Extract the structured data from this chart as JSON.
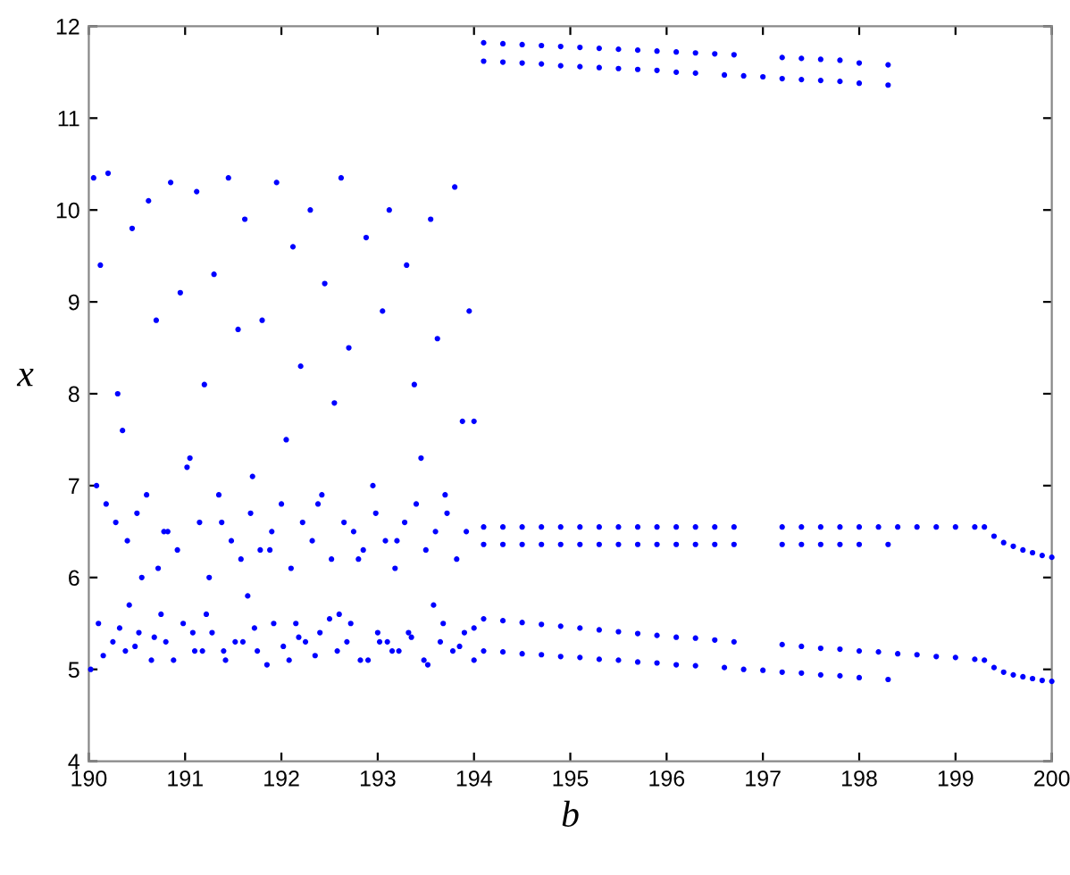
{
  "chart_data": {
    "type": "scatter",
    "xlabel": "b",
    "ylabel": "x",
    "xlim": [
      190,
      200
    ],
    "ylim": [
      4,
      12
    ],
    "xticks": [
      190,
      191,
      192,
      193,
      194,
      195,
      196,
      197,
      198,
      199,
      200
    ],
    "yticks": [
      4,
      5,
      6,
      7,
      8,
      9,
      10,
      11,
      12
    ],
    "grid": false,
    "marker": "circle",
    "series": [
      {
        "color": "#0000ff",
        "x": [
          190.05,
          190.12,
          190.2,
          190.3,
          190.35,
          190.45,
          190.55,
          190.62,
          190.7,
          190.78,
          190.85,
          190.95,
          191.05,
          191.12,
          191.2,
          191.3,
          191.38,
          191.45,
          191.55,
          191.62,
          191.7,
          191.8,
          191.88,
          191.95,
          192.05,
          192.12,
          192.2,
          192.3,
          192.38,
          192.45,
          192.55,
          192.62,
          192.7,
          192.8,
          192.88,
          192.95,
          193.05,
          193.12,
          193.2,
          193.3,
          193.38,
          193.45,
          193.55,
          193.62,
          193.7,
          193.8,
          193.88,
          193.95,
          190.08,
          190.18,
          190.28,
          190.4,
          190.5,
          190.6,
          190.72,
          190.82,
          190.92,
          191.02,
          191.15,
          191.25,
          191.35,
          191.48,
          191.58,
          191.68,
          191.78,
          191.9,
          192.0,
          192.1,
          192.22,
          192.32,
          192.42,
          192.52,
          192.65,
          192.75,
          192.85,
          192.98,
          193.08,
          193.18,
          193.28,
          193.4,
          193.5,
          193.6,
          193.72,
          193.82,
          193.92,
          194.0,
          190.1,
          190.25,
          190.38,
          190.52,
          190.65,
          190.8,
          190.98,
          191.1,
          191.28,
          191.42,
          191.6,
          191.75,
          191.92,
          192.08,
          192.25,
          192.4,
          192.58,
          192.72,
          192.9,
          193.02,
          193.15,
          193.32,
          193.48,
          193.65,
          193.78,
          193.9,
          190.15,
          190.32,
          190.48,
          190.68,
          190.88,
          191.08,
          191.22,
          191.4,
          191.52,
          191.72,
          191.85,
          192.02,
          192.18,
          192.35,
          192.5,
          192.68,
          192.82,
          193.0,
          193.22,
          193.35,
          193.52,
          193.68,
          193.85,
          194.0,
          190.02,
          190.42,
          190.75,
          191.18,
          191.65,
          192.15,
          192.6,
          193.1,
          193.58,
          194.0
        ],
        "values": [
          10.35,
          9.4,
          10.4,
          8.0,
          7.6,
          9.8,
          6.0,
          10.1,
          8.8,
          6.5,
          10.3,
          9.1,
          7.3,
          10.2,
          8.1,
          9.3,
          6.6,
          10.35,
          8.7,
          9.9,
          7.1,
          8.8,
          6.3,
          10.3,
          7.5,
          9.6,
          8.3,
          10.0,
          6.8,
          9.2,
          7.9,
          10.35,
          8.5,
          6.2,
          9.7,
          7.0,
          8.9,
          10.0,
          6.4,
          9.4,
          8.1,
          7.3,
          9.9,
          8.6,
          6.9,
          10.25,
          7.7,
          8.9,
          7.0,
          6.8,
          6.6,
          6.4,
          6.7,
          6.9,
          6.1,
          6.5,
          6.3,
          7.2,
          6.6,
          6.0,
          6.9,
          6.4,
          6.2,
          6.7,
          6.3,
          6.5,
          6.8,
          6.1,
          6.6,
          6.4,
          6.9,
          6.2,
          6.6,
          6.5,
          6.3,
          6.7,
          6.4,
          6.1,
          6.6,
          6.8,
          6.3,
          6.5,
          6.7,
          6.2,
          6.5,
          7.7,
          5.5,
          5.3,
          5.2,
          5.4,
          5.1,
          5.3,
          5.5,
          5.2,
          5.4,
          5.1,
          5.3,
          5.2,
          5.5,
          5.1,
          5.3,
          5.4,
          5.2,
          5.5,
          5.1,
          5.3,
          5.2,
          5.4,
          5.1,
          5.3,
          5.2,
          5.4,
          5.15,
          5.45,
          5.25,
          5.35,
          5.1,
          5.4,
          5.6,
          5.2,
          5.3,
          5.45,
          5.05,
          5.25,
          5.35,
          5.15,
          5.55,
          5.3,
          5.1,
          5.4,
          5.2,
          5.35,
          5.05,
          5.5,
          5.25,
          5.45,
          5.0,
          5.7,
          5.6,
          5.2,
          5.8,
          5.5,
          5.6,
          5.3,
          5.7,
          5.1
        ]
      },
      {
        "color": "#0000ff",
        "x": [
          194.1,
          194.3,
          194.5,
          194.7,
          194.9,
          195.1,
          195.3,
          195.5,
          195.7,
          195.9,
          196.1,
          196.3,
          196.5,
          196.7,
          197.2,
          197.4,
          197.6,
          197.8,
          198.0,
          198.3
        ],
        "values": [
          11.82,
          11.81,
          11.8,
          11.79,
          11.78,
          11.77,
          11.76,
          11.75,
          11.74,
          11.73,
          11.72,
          11.71,
          11.7,
          11.69,
          11.66,
          11.65,
          11.64,
          11.63,
          11.6,
          11.58
        ]
      },
      {
        "color": "#0000ff",
        "x": [
          194.1,
          194.3,
          194.5,
          194.7,
          194.9,
          195.1,
          195.3,
          195.5,
          195.7,
          195.9,
          196.1,
          196.3,
          196.6,
          196.8,
          197.0,
          197.2,
          197.4,
          197.6,
          197.8,
          198.0,
          198.3
        ],
        "values": [
          11.62,
          11.61,
          11.6,
          11.59,
          11.57,
          11.56,
          11.55,
          11.54,
          11.53,
          11.52,
          11.5,
          11.49,
          11.47,
          11.46,
          11.45,
          11.43,
          11.42,
          11.41,
          11.4,
          11.38,
          11.36
        ]
      },
      {
        "color": "#0000ff",
        "x": [
          194.1,
          194.3,
          194.5,
          194.7,
          194.9,
          195.1,
          195.3,
          195.5,
          195.7,
          195.9,
          196.1,
          196.3,
          196.5,
          196.7,
          197.2,
          197.4,
          197.6,
          197.8,
          198.0,
          198.2,
          198.4,
          198.6,
          198.8,
          199.0,
          199.2,
          199.3,
          199.4,
          199.5,
          199.6,
          199.7,
          199.8,
          199.9,
          200.0
        ],
        "values": [
          6.55,
          6.55,
          6.55,
          6.55,
          6.55,
          6.55,
          6.55,
          6.55,
          6.55,
          6.55,
          6.55,
          6.55,
          6.55,
          6.55,
          6.55,
          6.55,
          6.55,
          6.55,
          6.55,
          6.55,
          6.55,
          6.55,
          6.55,
          6.55,
          6.55,
          6.55,
          6.45,
          6.38,
          6.34,
          6.3,
          6.27,
          6.24,
          6.22
        ]
      },
      {
        "color": "#0000ff",
        "x": [
          194.1,
          194.3,
          194.5,
          194.7,
          194.9,
          195.1,
          195.3,
          195.5,
          195.7,
          195.9,
          196.1,
          196.3,
          196.5,
          196.7,
          197.2,
          197.4,
          197.6,
          197.8,
          198.0,
          198.3
        ],
        "values": [
          6.36,
          6.36,
          6.36,
          6.36,
          6.36,
          6.36,
          6.36,
          6.36,
          6.36,
          6.36,
          6.36,
          6.36,
          6.36,
          6.36,
          6.36,
          6.36,
          6.36,
          6.36,
          6.36,
          6.36
        ]
      },
      {
        "color": "#0000ff",
        "x": [
          194.1,
          194.3,
          194.5,
          194.7,
          194.9,
          195.1,
          195.3,
          195.5,
          195.7,
          195.9,
          196.1,
          196.3,
          196.5,
          196.7,
          197.2,
          197.4,
          197.6,
          197.8,
          198.0,
          198.2,
          198.4,
          198.6,
          198.8,
          199.0,
          199.2,
          199.3,
          199.4,
          199.5,
          199.6,
          199.7,
          199.8,
          199.9,
          200.0
        ],
        "values": [
          5.55,
          5.53,
          5.51,
          5.49,
          5.47,
          5.45,
          5.43,
          5.41,
          5.39,
          5.37,
          5.35,
          5.34,
          5.32,
          5.3,
          5.27,
          5.25,
          5.23,
          5.22,
          5.2,
          5.19,
          5.17,
          5.16,
          5.14,
          5.13,
          5.11,
          5.1,
          5.02,
          4.97,
          4.94,
          4.92,
          4.9,
          4.88,
          4.87
        ]
      },
      {
        "color": "#0000ff",
        "x": [
          194.1,
          194.3,
          194.5,
          194.7,
          194.9,
          195.1,
          195.3,
          195.5,
          195.7,
          195.9,
          196.1,
          196.3,
          196.6,
          196.8,
          197.0,
          197.2,
          197.4,
          197.6,
          197.8,
          198.0,
          198.3
        ],
        "values": [
          5.2,
          5.19,
          5.17,
          5.16,
          5.14,
          5.13,
          5.11,
          5.1,
          5.08,
          5.07,
          5.05,
          5.04,
          5.02,
          5.0,
          4.99,
          4.97,
          4.96,
          4.94,
          4.93,
          4.91,
          4.89
        ]
      }
    ]
  }
}
